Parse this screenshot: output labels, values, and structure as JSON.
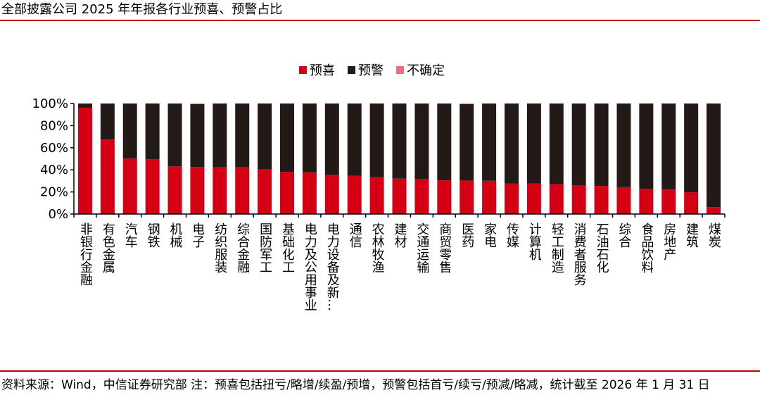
{
  "title": "全部披露公司 2025 年年报各行业预喜、预警占比",
  "footnote": "资料来源：Wind，中信证券研究部 注：预喜包括扭亏/略增/续盈/预增，预警包括首亏/续亏/预减/略减，统计截至 2026 年 1 月 31 日",
  "chart_data": {
    "type": "bar",
    "stacked": true,
    "percent": true,
    "categories": [
      "非银行金融",
      "有色金属",
      "汽车",
      "钢铁",
      "机械",
      "电子",
      "纺织服装",
      "综合金融",
      "国防军工",
      "基础化工",
      "电力及公用事业",
      "电力设备及新…",
      "通信",
      "农林牧渔",
      "建材",
      "交通运输",
      "商贸零售",
      "医药",
      "家电",
      "传媒",
      "计算机",
      "轻工制造",
      "消费者服务",
      "石油石化",
      "综合",
      "食品饮料",
      "房地产",
      "建筑",
      "煤炭"
    ],
    "series": [
      {
        "name": "预喜",
        "color": "#d50013",
        "values": [
          96.2,
          67.4,
          50.2,
          49.5,
          43.1,
          42.6,
          42.2,
          42.2,
          40.5,
          38.1,
          37.7,
          35.4,
          34.5,
          33.3,
          32.0,
          31.6,
          30.5,
          30.3,
          30.1,
          27.7,
          27.5,
          27.1,
          26.1,
          25.4,
          24.3,
          22.9,
          22.2,
          19.7,
          6.2
        ]
      },
      {
        "name": "预警",
        "color": "#231916",
        "values": [
          3.8,
          32.6,
          49.8,
          50.5,
          56.9,
          56.9,
          57.8,
          57.8,
          59.5,
          61.9,
          62.3,
          64.6,
          65.5,
          66.7,
          68.0,
          68.4,
          69.5,
          69.2,
          69.9,
          72.3,
          72.5,
          72.9,
          73.9,
          74.6,
          75.7,
          77.1,
          77.8,
          80.3,
          93.8
        ]
      },
      {
        "name": "不确定",
        "color": "#f36a7b",
        "values": [
          0,
          0,
          0,
          0,
          0,
          0.5,
          0,
          0,
          0,
          0,
          0,
          0,
          0,
          0,
          0,
          0,
          0,
          0.5,
          0,
          0,
          0,
          0,
          0,
          0,
          0,
          0,
          0,
          0,
          0
        ]
      }
    ],
    "yticks": [
      "0%",
      "20%",
      "40%",
      "60%",
      "80%",
      "100%"
    ],
    "ylim": [
      0,
      100
    ],
    "legend": "top",
    "grid": false
  }
}
